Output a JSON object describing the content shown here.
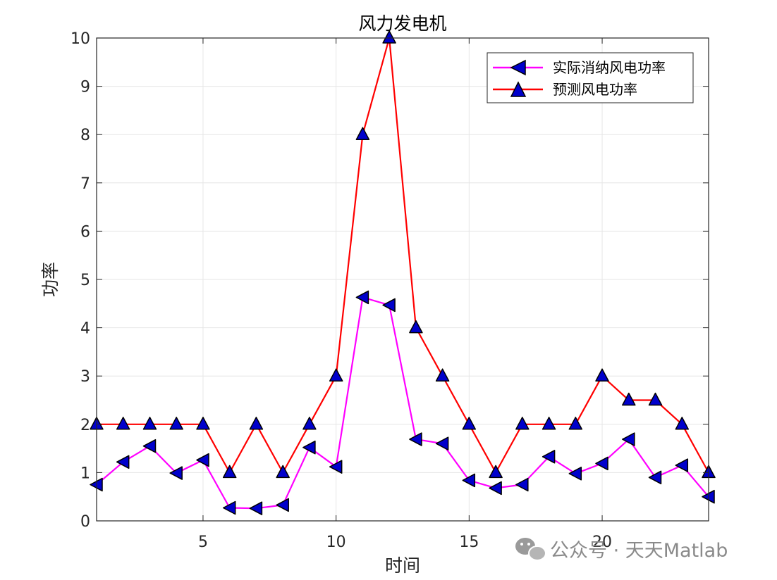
{
  "chart_data": {
    "type": "line",
    "title": "风力发电机",
    "xlabel": "时间",
    "ylabel": "功率",
    "xlim": [
      1,
      24
    ],
    "ylim": [
      0,
      10
    ],
    "xticks": [
      5,
      10,
      15,
      20
    ],
    "yticks": [
      0,
      1,
      2,
      3,
      4,
      5,
      6,
      7,
      8,
      9,
      10
    ],
    "grid": true,
    "legend_position": "top-right",
    "x": [
      1,
      2,
      3,
      4,
      5,
      6,
      7,
      8,
      9,
      10,
      11,
      12,
      13,
      14,
      15,
      16,
      17,
      18,
      19,
      20,
      21,
      22,
      23,
      24
    ],
    "series": [
      {
        "name": "实际消纳风电功率",
        "color": "#ff00ff",
        "marker": "triangle-left",
        "marker_fill": "#0000cc",
        "values": [
          0.75,
          1.22,
          1.55,
          0.99,
          1.26,
          0.27,
          0.26,
          0.33,
          1.52,
          1.12,
          4.63,
          4.47,
          1.69,
          1.6,
          0.84,
          0.68,
          0.75,
          1.33,
          0.98,
          1.19,
          1.69,
          0.9,
          1.15,
          0.5
        ]
      },
      {
        "name": "预测风电功率",
        "color": "#ff0000",
        "marker": "triangle-up",
        "marker_fill": "#0000cc",
        "values": [
          2,
          2,
          2,
          2,
          2,
          1,
          2,
          1,
          2,
          3,
          8,
          10,
          4,
          3,
          2,
          1,
          2,
          2,
          2,
          3,
          2.5,
          2.5,
          2,
          1
        ]
      }
    ]
  },
  "watermark": {
    "text": "公众号 · 天天Matlab",
    "icon": "wechat-icon"
  }
}
